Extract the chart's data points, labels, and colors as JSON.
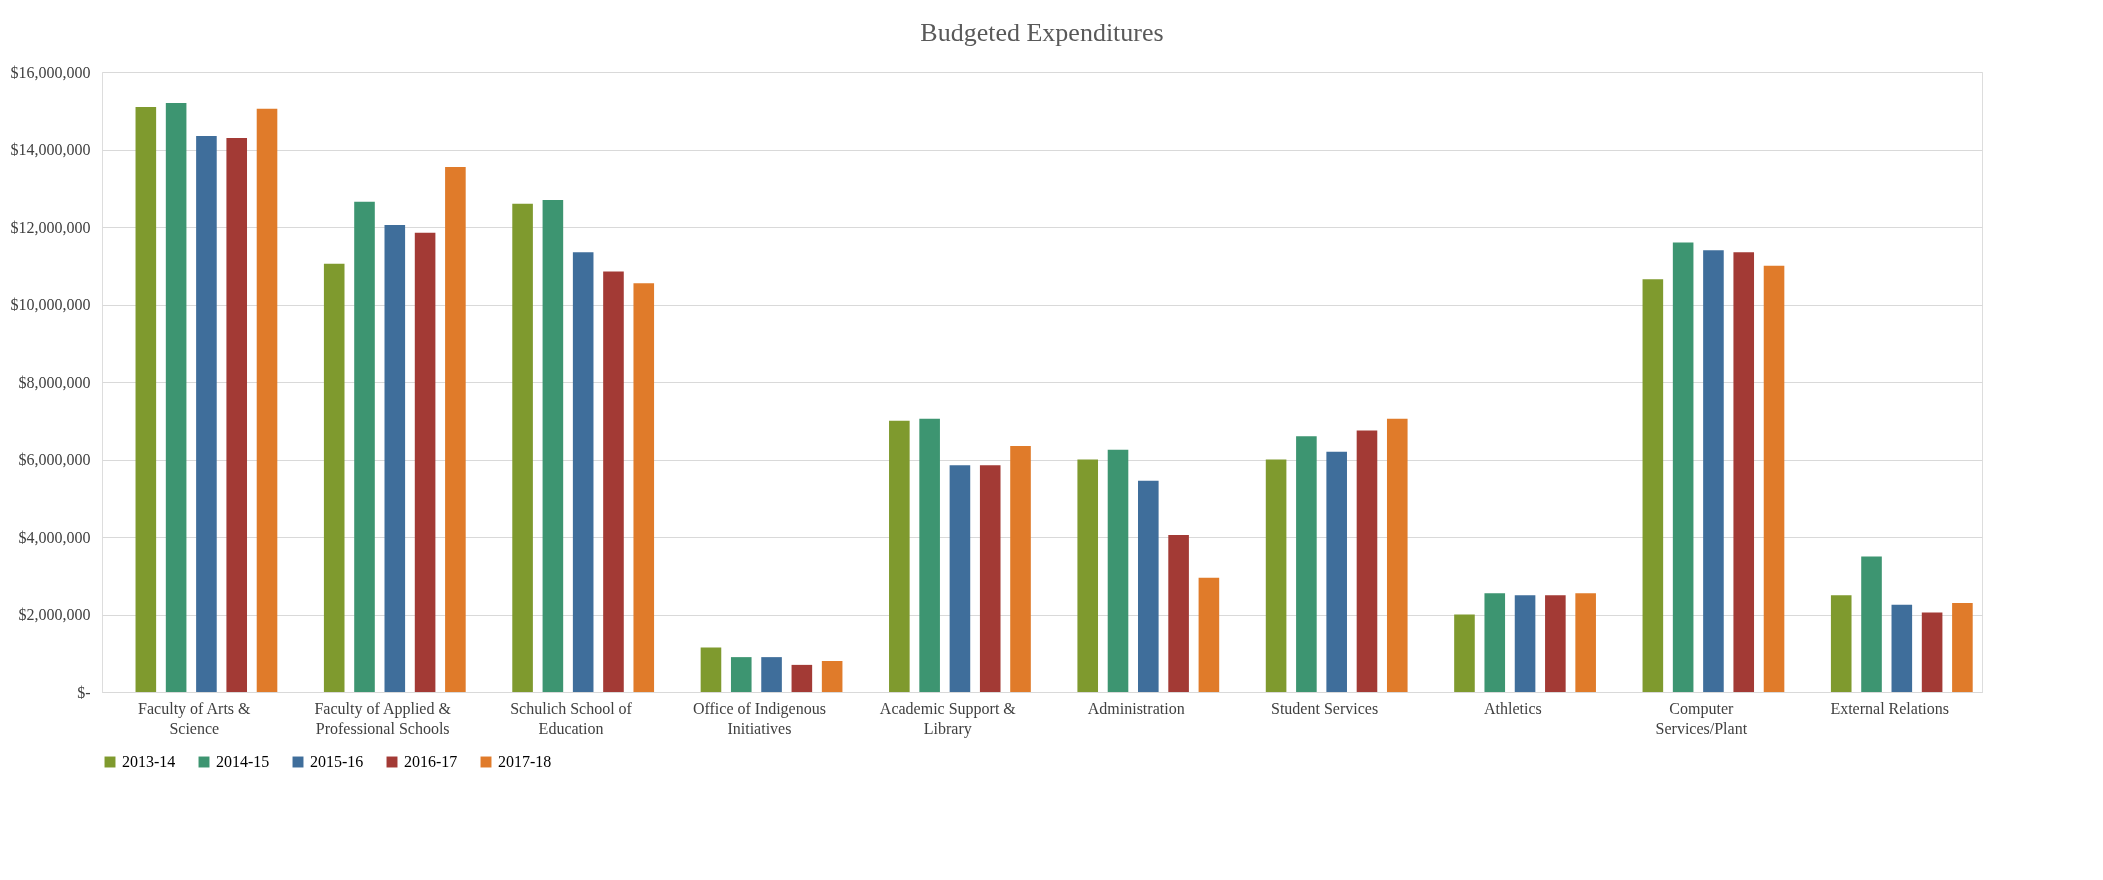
{
  "chart_data": {
    "type": "bar",
    "title": "Budgeted Expenditures",
    "categories": [
      "Faculty of Arts & Science",
      "Faculty of Applied & Professional Schools",
      "Schulich School of Education",
      "Office of Indigenous Initiatives",
      "Academic Support & Library",
      "Administration",
      "Student Services",
      "Athletics",
      "Computer Services/Plant",
      "External Relations"
    ],
    "series": [
      {
        "name": "2013-14",
        "color": "#7f9a2e",
        "values": [
          15100000,
          11050000,
          12600000,
          1150000,
          7000000,
          6000000,
          6000000,
          2000000,
          10650000,
          2500000
        ]
      },
      {
        "name": "2014-15",
        "color": "#3d9571",
        "values": [
          15200000,
          12650000,
          12700000,
          900000,
          7050000,
          6250000,
          6600000,
          2550000,
          11600000,
          3500000
        ]
      },
      {
        "name": "2015-16",
        "color": "#3f6e9b",
        "values": [
          14350000,
          12050000,
          11350000,
          900000,
          5850000,
          5450000,
          6200000,
          2500000,
          11400000,
          2250000
        ]
      },
      {
        "name": "2016-17",
        "color": "#a33a35",
        "values": [
          14300000,
          11850000,
          10850000,
          700000,
          5850000,
          4050000,
          6750000,
          2500000,
          11350000,
          2050000
        ]
      },
      {
        "name": "2017-18",
        "color": "#e07b2a",
        "values": [
          15050000,
          13550000,
          10550000,
          800000,
          6350000,
          2950000,
          7050000,
          2550000,
          11000000,
          2300000
        ]
      }
    ],
    "ylim": [
      0,
      16000000
    ],
    "yticks": [
      {
        "value": 0,
        "label": "$-"
      },
      {
        "value": 2000000,
        "label": "$2,000,000"
      },
      {
        "value": 4000000,
        "label": "$4,000,000"
      },
      {
        "value": 6000000,
        "label": "$6,000,000"
      },
      {
        "value": 8000000,
        "label": "$8,000,000"
      },
      {
        "value": 10000000,
        "label": "$10,000,000"
      },
      {
        "value": 12000000,
        "label": "$12,000,000"
      },
      {
        "value": 14000000,
        "label": "$14,000,000"
      },
      {
        "value": 16000000,
        "label": "$16,000,000"
      }
    ],
    "grid": "y",
    "legend": "bottom"
  }
}
